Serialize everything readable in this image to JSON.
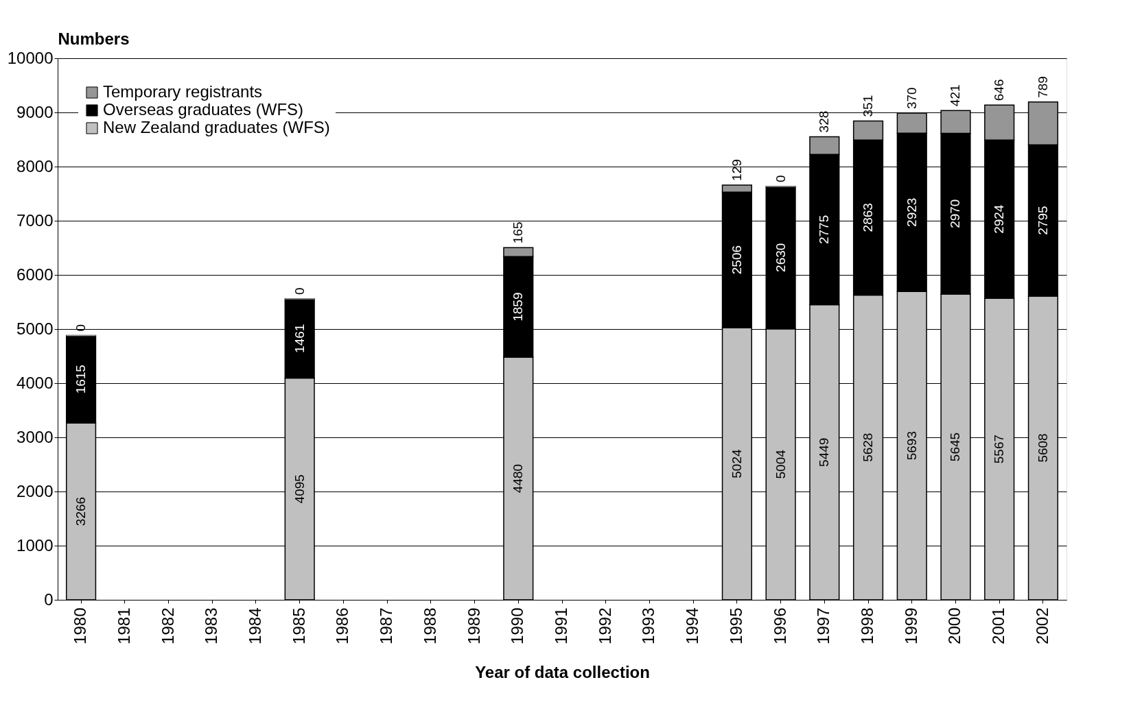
{
  "chart_data": {
    "type": "bar",
    "stacked": true,
    "ylabel": "Numbers",
    "xlabel": "Year of data collection",
    "categories": [
      "1980",
      "1981",
      "1982",
      "1983",
      "1984",
      "1985",
      "1986",
      "1987",
      "1988",
      "1989",
      "1990",
      "1991",
      "1992",
      "1993",
      "1994",
      "1995",
      "1996",
      "1997",
      "1998",
      "1999",
      "2000",
      "2001",
      "2002"
    ],
    "series": [
      {
        "name": "New Zealand graduates (WFS)",
        "color": "#c0c0c0",
        "values": [
          3266,
          null,
          null,
          null,
          null,
          4095,
          null,
          null,
          null,
          null,
          4480,
          null,
          null,
          null,
          null,
          5024,
          5004,
          5449,
          5628,
          5693,
          5645,
          5567,
          5608
        ]
      },
      {
        "name": "Overseas graduates (WFS)",
        "color": "#000000",
        "values": [
          1615,
          null,
          null,
          null,
          null,
          1461,
          null,
          null,
          null,
          null,
          1859,
          null,
          null,
          null,
          null,
          2506,
          2630,
          2775,
          2863,
          2923,
          2970,
          2924,
          2795
        ]
      },
      {
        "name": "Temporary registrants",
        "color": "#969696",
        "values": [
          0,
          null,
          null,
          null,
          null,
          0,
          null,
          null,
          null,
          null,
          165,
          null,
          null,
          null,
          null,
          129,
          0,
          328,
          351,
          370,
          421,
          646,
          789
        ]
      }
    ],
    "ylim": [
      0,
      10000
    ],
    "yticks": [
      0,
      1000,
      2000,
      3000,
      4000,
      5000,
      6000,
      7000,
      8000,
      9000,
      10000
    ],
    "grid": "y",
    "legend": "top left",
    "data_labels": true
  }
}
